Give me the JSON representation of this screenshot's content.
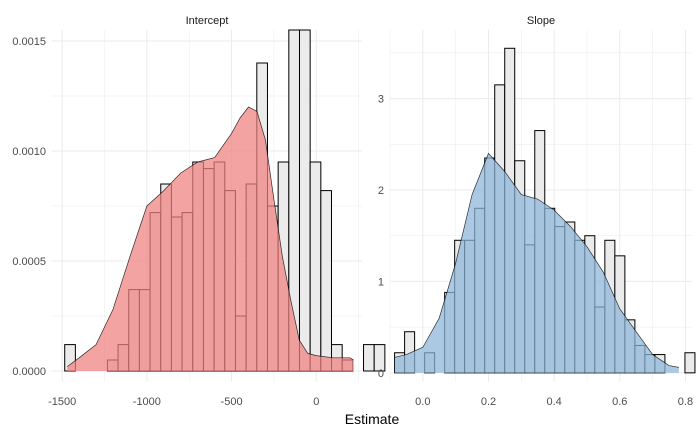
{
  "chart_data": {
    "type": "histogram",
    "xlabel": "Estimate",
    "grid": true,
    "panels": [
      {
        "title": "Intercept",
        "xlim": [
          -1560,
          270
        ],
        "ylim": [
          -5e-05,
          0.00155
        ],
        "x_ticks": [
          -1500,
          -1000,
          -500,
          0
        ],
        "x_tick_labels": [
          "-1500",
          "-1000",
          "-500",
          "0"
        ],
        "y_ticks": [
          0,
          0.0005,
          0.001,
          0.0015
        ],
        "y_tick_labels": [
          "0.0000",
          "0.0005",
          "0.0010",
          "0.0015"
        ],
        "bar_fill": "#ebebeb",
        "density_color": "#f08080",
        "bin_width": 63,
        "bin_start": -1485,
        "bars": [
          0.00012,
          0.0,
          0.0,
          0.0,
          5e-05,
          0.00012,
          0.00037,
          0.00037,
          0.00072,
          0.00085,
          0.0007,
          0.00072,
          0.00095,
          0.00092,
          0.00095,
          0.00082,
          0.00025,
          0.00085,
          0.0014,
          0.00075,
          0.00095,
          0.00155,
          0.00155,
          0.00095,
          0.00082,
          0.00012,
          5e-05,
          0.0,
          0.00012,
          0.00012
        ],
        "density_x": [
          -1470,
          -1400,
          -1300,
          -1200,
          -1100,
          -1000,
          -900,
          -800,
          -700,
          -600,
          -500,
          -450,
          -400,
          -350,
          -300,
          -250,
          -200,
          -150,
          -100,
          -50,
          0,
          100,
          200,
          220
        ],
        "density_y": [
          2e-05,
          6e-05,
          0.00012,
          0.00028,
          0.00052,
          0.00075,
          0.00082,
          0.0009,
          0.00095,
          0.00097,
          0.00108,
          0.00115,
          0.0012,
          0.00118,
          0.00105,
          0.00078,
          0.00052,
          0.00032,
          0.00014,
          8e-05,
          7e-05,
          6e-05,
          6e-05,
          5e-05
        ]
      },
      {
        "title": "Slope",
        "xlim": [
          -0.1,
          0.82
        ],
        "ylim": [
          -0.1,
          3.75
        ],
        "x_ticks": [
          0,
          0.2,
          0.4,
          0.6,
          0.8
        ],
        "x_tick_labels": [
          "0.0",
          "0.2",
          "0.4",
          "0.6",
          "0.8"
        ],
        "y_ticks": [
          0,
          1,
          2,
          3
        ],
        "y_tick_labels": [
          "0",
          "1",
          "2",
          "3"
        ],
        "bar_fill": "#ebebeb",
        "density_color": "#8ab4d8",
        "bin_width": 0.0305,
        "bin_start": -0.086,
        "bars": [
          0.22,
          0.45,
          0.0,
          0.22,
          0.0,
          0.88,
          1.45,
          1.45,
          1.8,
          2.35,
          3.15,
          3.55,
          2.32,
          1.4,
          2.65,
          1.8,
          1.6,
          1.65,
          1.45,
          1.5,
          0.72,
          1.45,
          1.28,
          0.58,
          0.3,
          0.2,
          0.2,
          0.0,
          0.0,
          0.22
        ],
        "density_x": [
          -0.085,
          -0.05,
          0.0,
          0.05,
          0.1,
          0.15,
          0.2,
          0.25,
          0.3,
          0.35,
          0.4,
          0.45,
          0.5,
          0.55,
          0.6,
          0.65,
          0.7,
          0.75,
          0.78
        ],
        "density_y": [
          0.17,
          0.2,
          0.28,
          0.6,
          1.2,
          1.95,
          2.4,
          2.2,
          1.95,
          1.9,
          1.78,
          1.6,
          1.38,
          1.1,
          0.7,
          0.45,
          0.2,
          0.08,
          0.06
        ]
      }
    ]
  }
}
